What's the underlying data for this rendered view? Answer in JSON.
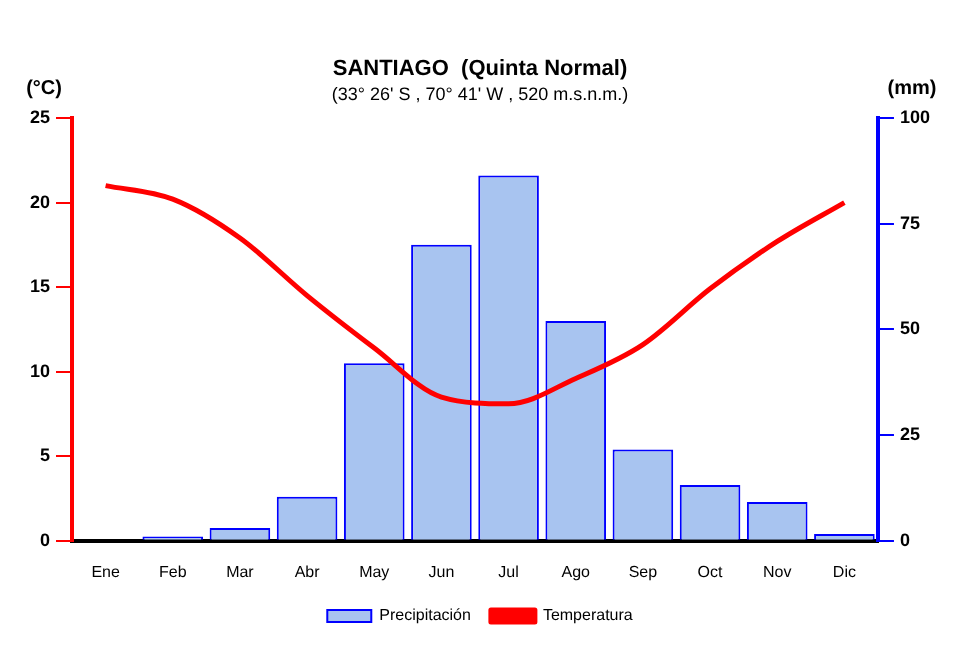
{
  "chart_data": {
    "type": "bar",
    "title": "SANTIAGO  (Quinta Normal)",
    "subtitle": "(33° 26' S , 70° 41' W , 520 m.s.n.m.)",
    "ylabel": "(°C)",
    "y2label": "(mm)",
    "categories": [
      "Ene",
      "Feb",
      "Mar",
      "Abr",
      "May",
      "Jun",
      "Jul",
      "Ago",
      "Sep",
      "Oct",
      "Nov",
      "Dic"
    ],
    "series": [
      {
        "name": "Precipitación",
        "axis": "y2",
        "color": "#a8c4f0",
        "values": [
          0,
          1,
          3,
          10.4,
          42,
          70,
          86.4,
          52,
          21.6,
          13.2,
          9.2,
          1.6
        ]
      },
      {
        "name": "Temperatura",
        "type": "line",
        "axis": "y",
        "color": "#ff0000",
        "values": [
          21,
          20.2,
          17.9,
          14.5,
          11.4,
          8.5,
          8.1,
          9.6,
          11.6,
          14.9,
          17.7,
          20
        ]
      }
    ],
    "ylim": [
      0,
      25
    ],
    "yticks": [
      0,
      5,
      10,
      15,
      20,
      25
    ],
    "y2lim": [
      0,
      100
    ],
    "y2ticks": [
      0,
      25,
      50,
      75,
      100
    ],
    "grid": false,
    "legend": "bottom",
    "marker": "none",
    "line_style": "solid"
  }
}
